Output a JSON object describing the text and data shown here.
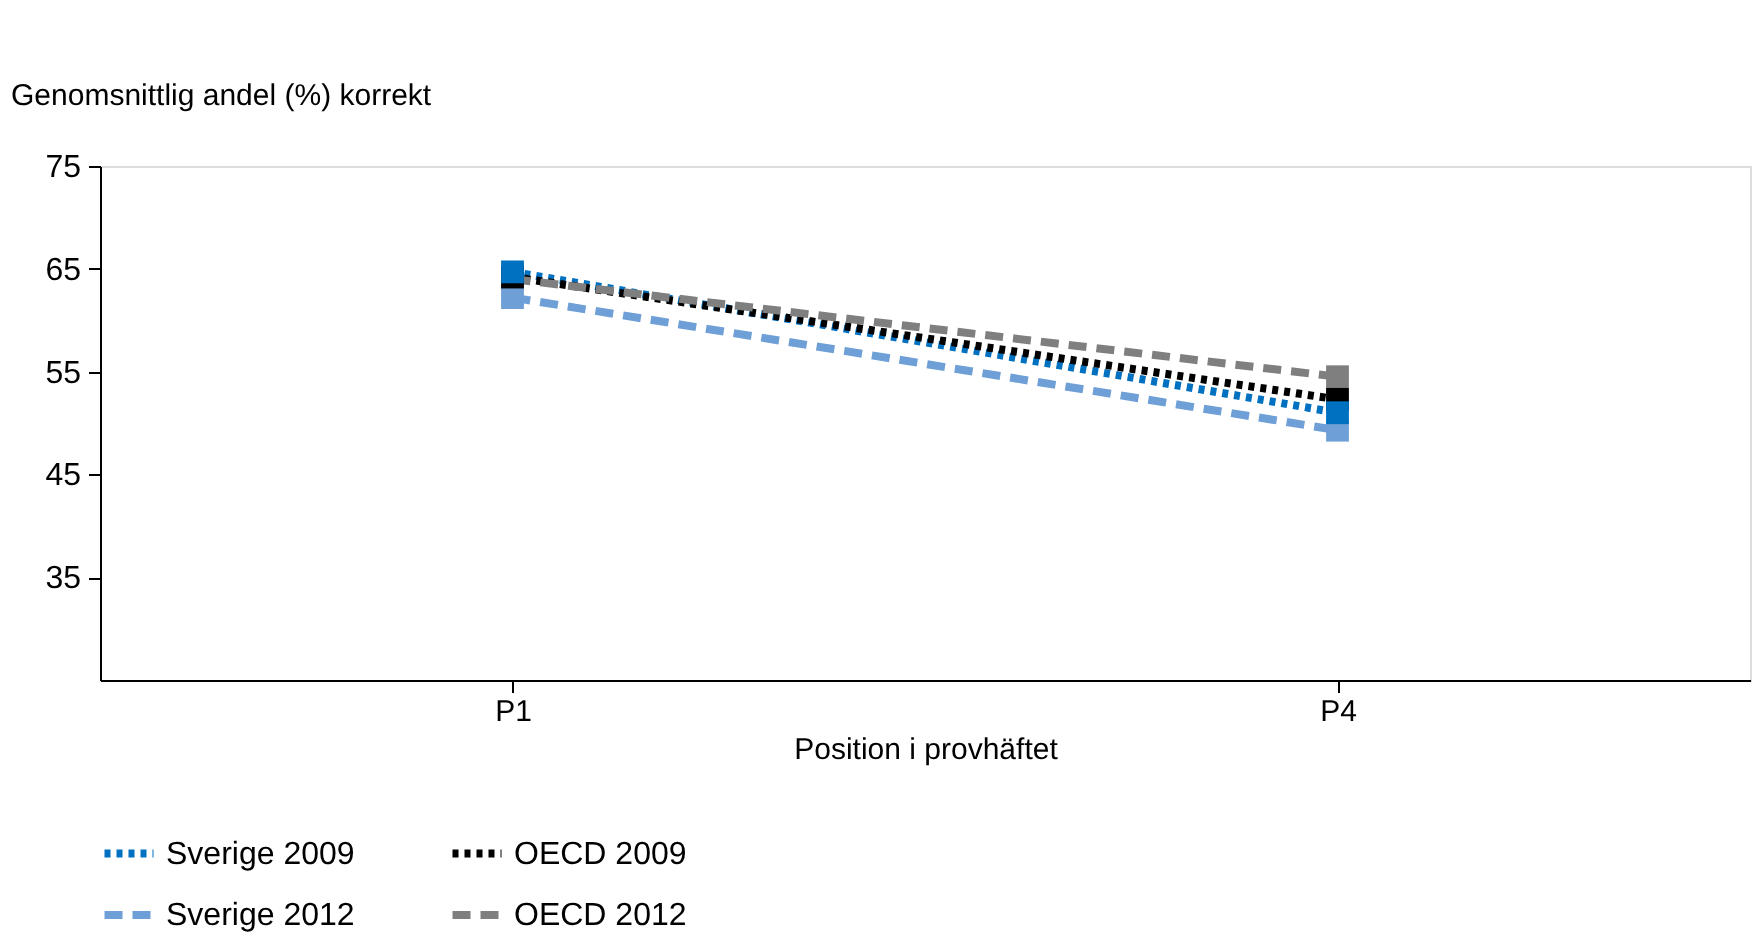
{
  "chart_data": {
    "type": "line",
    "ylabel": "Genomsnittlig andel (%) korrekt",
    "xlabel": "Position i provhäftet",
    "categories": [
      "P1",
      "P4"
    ],
    "ylim": [
      25,
      75
    ],
    "yticks": [
      35,
      45,
      55,
      65,
      75
    ],
    "grid": false,
    "legend": "bottom",
    "marker": "square",
    "series": [
      {
        "name": "Sverige 2009",
        "color": "#0070c0",
        "line_style": "dotted",
        "values": [
          64.7,
          51.0
        ]
      },
      {
        "name": "OECD 2009",
        "color": "#000000",
        "line_style": "dotted",
        "values": [
          64.2,
          52.3
        ]
      },
      {
        "name": "Sverige 2012",
        "color": "#6e9fd6",
        "line_style": "dashed",
        "values": [
          62.2,
          49.3
        ]
      },
      {
        "name": "OECD 2012",
        "color": "#7f7f7f",
        "line_style": "dashed",
        "values": [
          64.0,
          54.5
        ]
      }
    ]
  }
}
